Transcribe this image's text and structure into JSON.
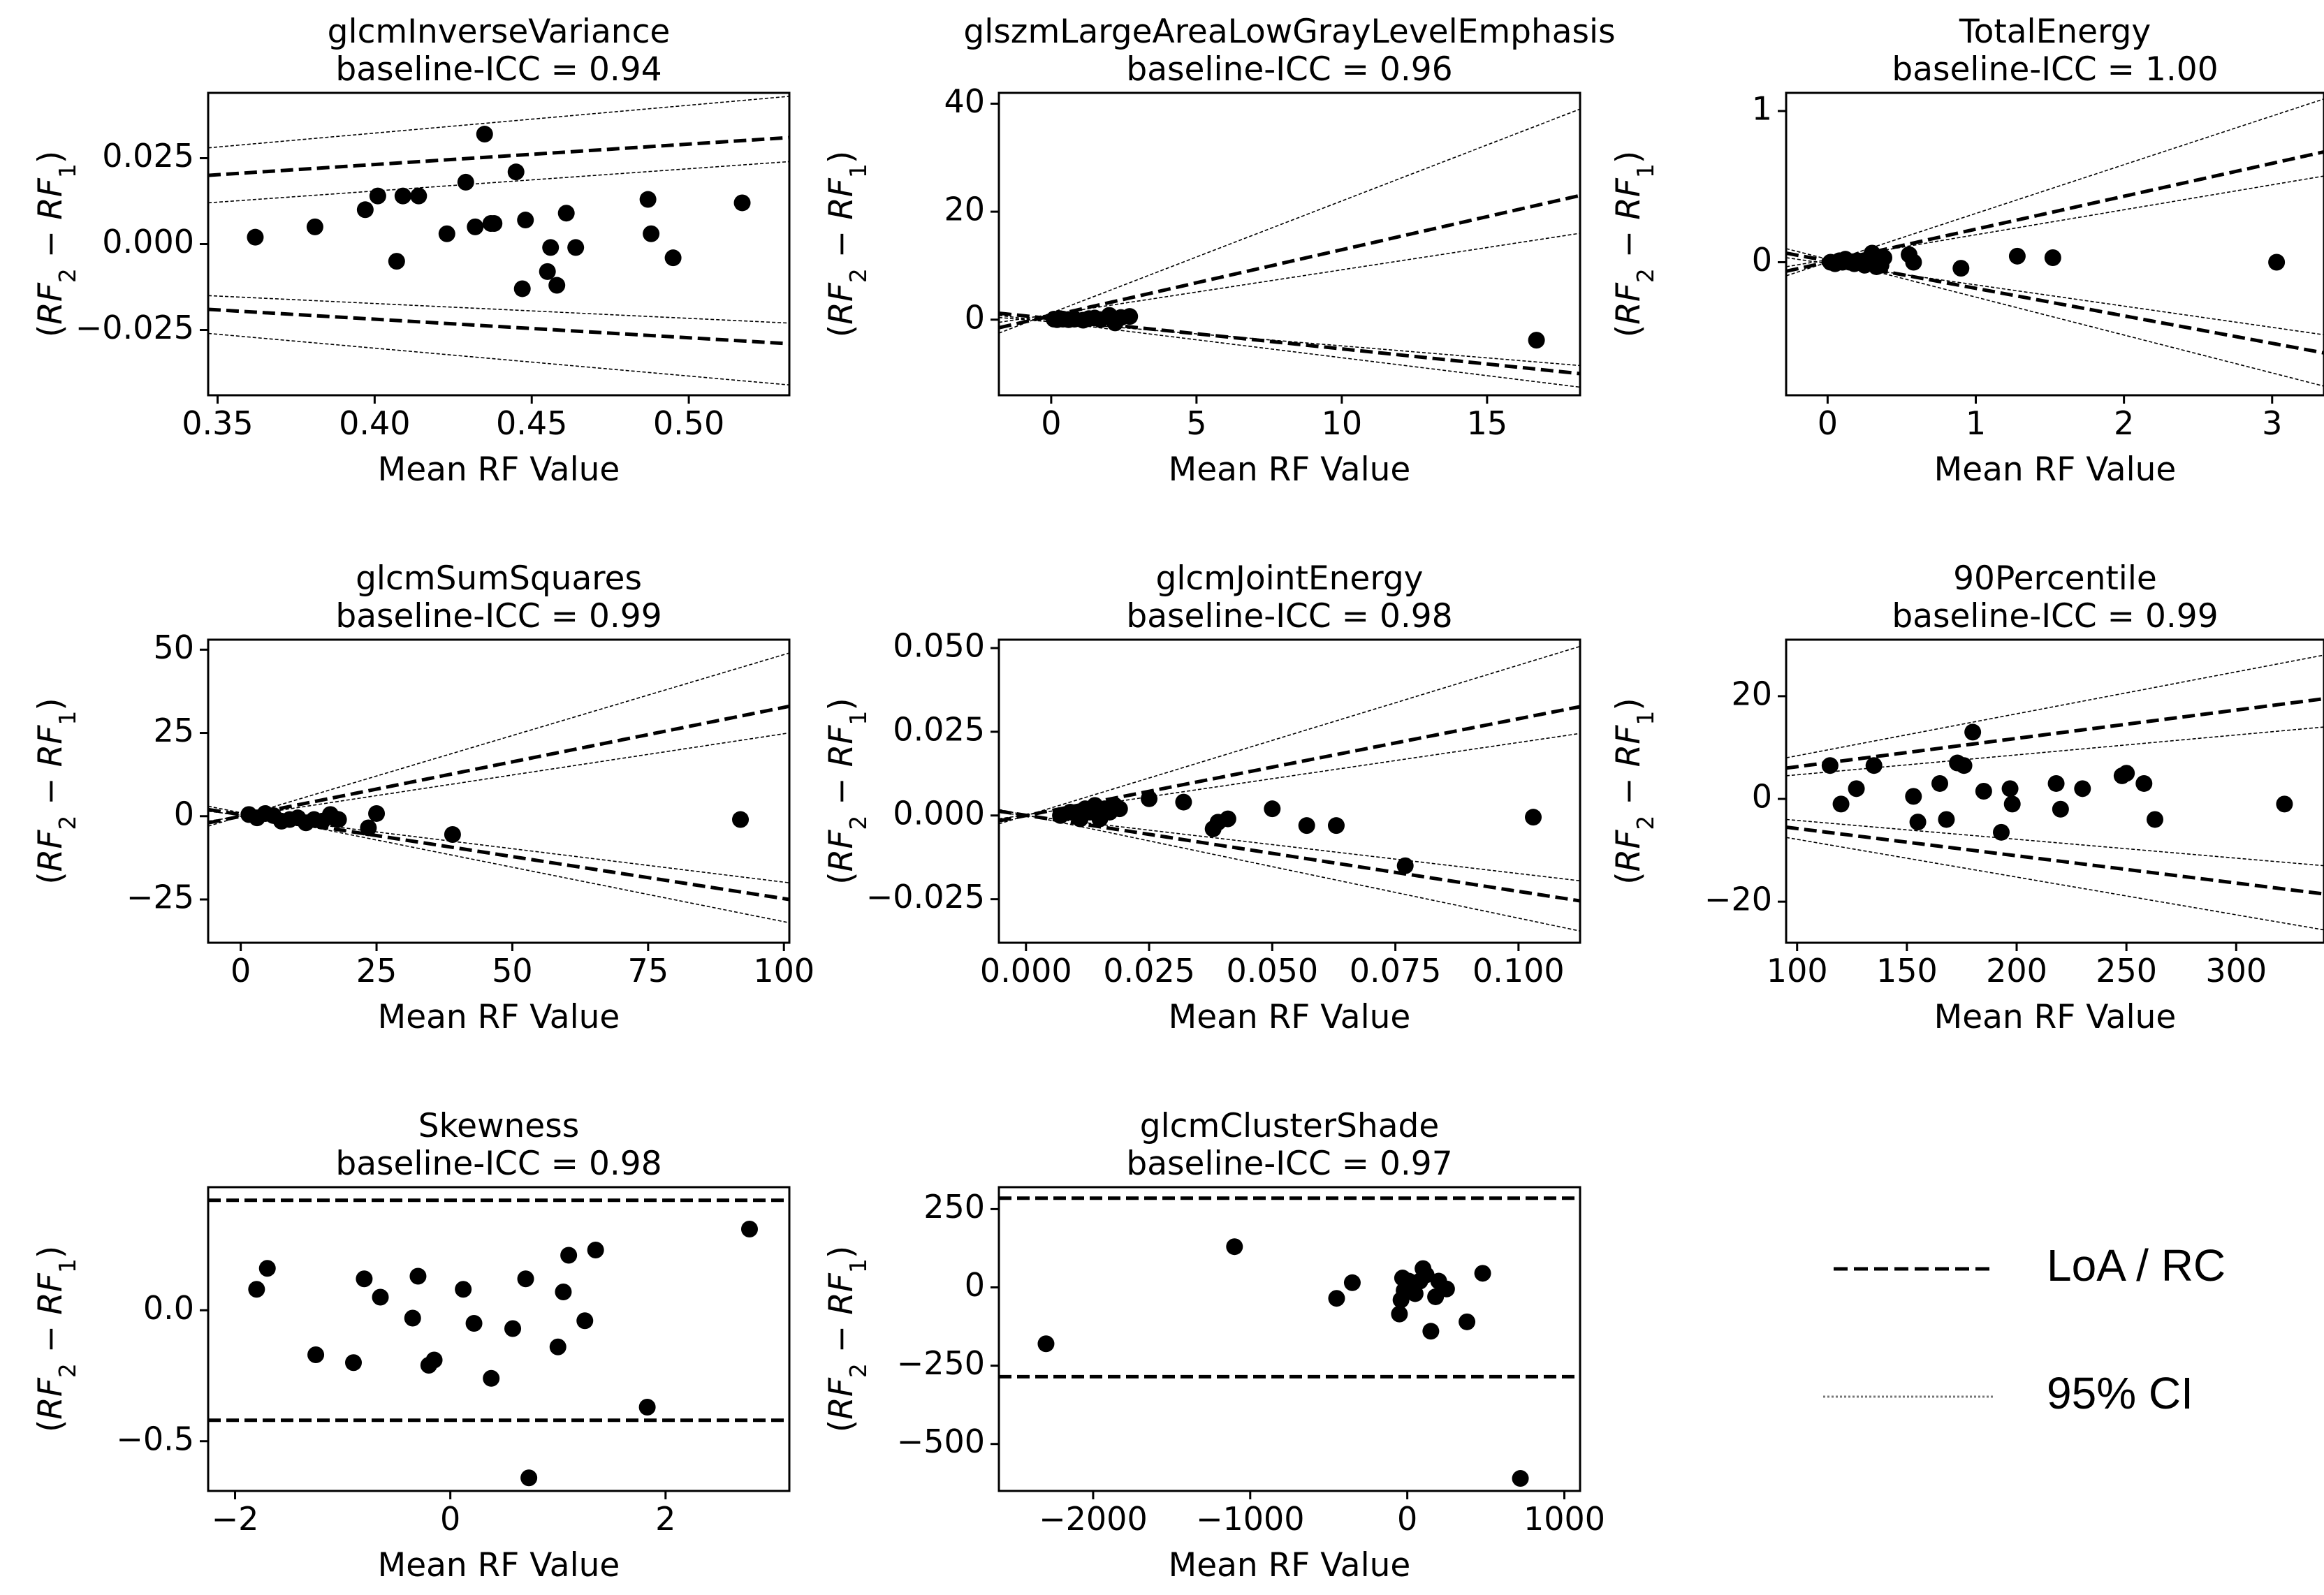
{
  "figure": {
    "xlabel": "Mean RF Value",
    "ylabel_parts": {
      "open": "(",
      "rf": "RF",
      "sub2": "2",
      "minus": " − ",
      "sub1": "1",
      "close": ")"
    },
    "legend": {
      "loa_label": "LoA / RC",
      "ci_label": "95% CI"
    }
  },
  "chart_data": [
    {
      "type": "scatter",
      "title": "glcmInverseVariance",
      "subtitle": "baseline-ICC = 0.94",
      "xlabel": "Mean RF Value",
      "ylabel": "(RF2 − RF1)",
      "xlim": [
        0.347,
        0.532
      ],
      "ylim": [
        -0.044,
        0.044
      ],
      "xticks": [
        0.35,
        0.4,
        0.45,
        0.5
      ],
      "xtick_labels": [
        "0.35",
        "0.40",
        "0.45",
        "0.50"
      ],
      "yticks": [
        -0.025,
        0.0,
        0.025
      ],
      "ytick_labels": [
        "−0.025",
        "0.000",
        "0.025"
      ],
      "loa_lines": [
        [
          [
            0.347,
            0.02
          ],
          [
            0.532,
            0.031
          ]
        ],
        [
          [
            0.347,
            -0.019
          ],
          [
            0.532,
            -0.029
          ]
        ]
      ],
      "ci_lines": [
        [
          [
            0.347,
            0.028
          ],
          [
            0.532,
            0.043
          ]
        ],
        [
          [
            0.347,
            0.012
          ],
          [
            0.532,
            0.024
          ]
        ],
        [
          [
            0.347,
            -0.015
          ],
          [
            0.532,
            -0.023
          ]
        ],
        [
          [
            0.347,
            -0.026
          ],
          [
            0.532,
            -0.041
          ]
        ]
      ],
      "points": {
        "x": [
          0.362,
          0.381,
          0.397,
          0.401,
          0.407,
          0.409,
          0.414,
          0.423,
          0.429,
          0.432,
          0.435,
          0.437,
          0.438,
          0.445,
          0.447,
          0.448,
          0.455,
          0.456,
          0.458,
          0.461,
          0.464,
          0.487,
          0.488,
          0.495,
          0.517
        ],
        "y": [
          0.002,
          0.005,
          0.01,
          0.014,
          -0.005,
          0.014,
          0.014,
          0.003,
          0.018,
          0.005,
          0.032,
          0.006,
          0.006,
          0.021,
          -0.013,
          0.007,
          -0.008,
          -0.001,
          -0.012,
          0.009,
          -0.001,
          0.013,
          0.003,
          -0.004,
          0.012
        ]
      }
    },
    {
      "type": "scatter",
      "title": "glszmLargeAreaLowGrayLevelEmphasis",
      "subtitle": "baseline-ICC = 0.96",
      "xlabel": "Mean RF Value",
      "ylabel": "(RF2 − RF1)",
      "xlim": [
        -1.8,
        18.2
      ],
      "ylim": [
        -14,
        42
      ],
      "xticks": [
        0,
        5,
        10,
        15
      ],
      "xtick_labels": [
        "0",
        "5",
        "10",
        "15"
      ],
      "yticks": [
        0,
        20,
        40
      ],
      "ytick_labels": [
        "0",
        "20",
        "40"
      ],
      "loa_lines": [
        [
          [
            -1.8,
            -1.5
          ],
          [
            18.2,
            23
          ]
        ],
        [
          [
            -1.8,
            1.2
          ],
          [
            18.2,
            -10
          ]
        ]
      ],
      "ci_lines": [
        [
          [
            -1.8,
            -2.5
          ],
          [
            18.2,
            39
          ]
        ],
        [
          [
            -1.8,
            -0.5
          ],
          [
            18.2,
            16
          ]
        ],
        [
          [
            -1.8,
            0.4
          ],
          [
            18.2,
            -8.5
          ]
        ],
        [
          [
            -1.8,
            0.8
          ],
          [
            18.2,
            -12.5
          ]
        ]
      ],
      "points": {
        "x": [
          0.1,
          0.2,
          0.3,
          0.4,
          0.6,
          0.8,
          1.1,
          1.3,
          1.5,
          1.7,
          2.0,
          2.2,
          2.4,
          2.7,
          16.7
        ],
        "y": [
          0.1,
          0.0,
          0.2,
          0.1,
          0.0,
          0.1,
          -0.1,
          0.2,
          0.3,
          0.0,
          0.8,
          -0.6,
          0.4,
          0.6,
          -3.8
        ]
      }
    },
    {
      "type": "scatter",
      "title": "TotalEnergy",
      "subtitle": "baseline-ICC = 1.00",
      "xlabel": "Mean RF Value",
      "ylabel": "(RF2 − RF1)",
      "xlim": [
        -0.28,
        3.35
      ],
      "ylim": [
        -0.88,
        1.12
      ],
      "xticks": [
        0,
        1,
        2,
        3
      ],
      "xtick_labels": [
        "0",
        "1",
        "2",
        "3"
      ],
      "yticks": [
        0,
        1
      ],
      "ytick_labels": [
        "0",
        "1"
      ],
      "loa_lines": [
        [
          [
            -0.28,
            -0.06
          ],
          [
            3.35,
            0.73
          ]
        ],
        [
          [
            -0.28,
            0.06
          ],
          [
            3.35,
            -0.6
          ]
        ]
      ],
      "ci_lines": [
        [
          [
            -0.28,
            -0.09
          ],
          [
            3.35,
            1.08
          ]
        ],
        [
          [
            -0.28,
            -0.03
          ],
          [
            3.35,
            0.57
          ]
        ],
        [
          [
            -0.28,
            0.03
          ],
          [
            3.35,
            -0.48
          ]
        ],
        [
          [
            -0.28,
            0.09
          ],
          [
            3.35,
            -0.82
          ]
        ]
      ],
      "points": {
        "x": [
          0.02,
          0.05,
          0.08,
          0.1,
          0.12,
          0.15,
          0.18,
          0.2,
          0.22,
          0.25,
          0.28,
          0.3,
          0.33,
          0.35,
          0.36,
          0.38,
          0.55,
          0.58,
          0.9,
          1.28,
          1.52,
          3.03
        ],
        "y": [
          0.0,
          -0.01,
          0.01,
          0.0,
          0.02,
          0.0,
          -0.01,
          0.01,
          0.0,
          -0.02,
          0.0,
          0.06,
          -0.03,
          0.02,
          -0.02,
          0.03,
          0.05,
          0.0,
          -0.04,
          0.04,
          0.03,
          0.0
        ]
      }
    },
    {
      "type": "scatter",
      "title": "glcmSumSquares",
      "subtitle": "baseline-ICC = 0.99",
      "xlabel": "Mean RF Value",
      "ylabel": "(RF2 − RF1)",
      "xlim": [
        -6,
        101
      ],
      "ylim": [
        -38,
        53
      ],
      "xticks": [
        0,
        25,
        50,
        75,
        100
      ],
      "xtick_labels": [
        "0",
        "25",
        "50",
        "75",
        "100"
      ],
      "yticks": [
        -25,
        0,
        25,
        50
      ],
      "ytick_labels": [
        "−25",
        "0",
        "25",
        "50"
      ],
      "loa_lines": [
        [
          [
            -6,
            -2
          ],
          [
            101,
            33
          ]
        ],
        [
          [
            -6,
            2
          ],
          [
            101,
            -25
          ]
        ]
      ],
      "ci_lines": [
        [
          [
            -6,
            -3
          ],
          [
            101,
            49
          ]
        ],
        [
          [
            -6,
            -1.5
          ],
          [
            101,
            25
          ]
        ],
        [
          [
            -6,
            1.5
          ],
          [
            101,
            -20
          ]
        ],
        [
          [
            -6,
            3
          ],
          [
            101,
            -32
          ]
        ]
      ],
      "points": {
        "x": [
          1.5,
          3,
          4.5,
          6,
          7.5,
          9,
          10.5,
          12,
          13.5,
          15,
          16.5,
          17.5,
          18,
          23.5,
          25,
          39,
          92
        ],
        "y": [
          0.5,
          -0.5,
          0.8,
          0.2,
          -1.5,
          -1.0,
          -0.5,
          -2.0,
          -1.0,
          -1.5,
          0.5,
          -0.8,
          -1.0,
          -3.5,
          0.8,
          -5.5,
          -1.0
        ]
      }
    },
    {
      "type": "scatter",
      "title": "glcmJointEnergy",
      "subtitle": "baseline-ICC = 0.98",
      "xlabel": "Mean RF Value",
      "ylabel": "(RF2 − RF1)",
      "xlim": [
        -0.0055,
        0.1125
      ],
      "ylim": [
        -0.038,
        0.0525
      ],
      "xticks": [
        0.0,
        0.025,
        0.05,
        0.075,
        0.1
      ],
      "xtick_labels": [
        "0.000",
        "0.025",
        "0.050",
        "0.075",
        "0.100"
      ],
      "yticks": [
        -0.025,
        0.0,
        0.025,
        0.05
      ],
      "ytick_labels": [
        "−0.025",
        "0.000",
        "0.025",
        "0.050"
      ],
      "loa_lines": [
        [
          [
            -0.0055,
            -0.0016
          ],
          [
            0.1125,
            0.0325
          ]
        ],
        [
          [
            -0.0055,
            0.0013
          ],
          [
            0.1125,
            -0.0255
          ]
        ]
      ],
      "ci_lines": [
        [
          [
            -0.0055,
            -0.0025
          ],
          [
            0.1125,
            0.0505
          ]
        ],
        [
          [
            -0.0055,
            -0.001
          ],
          [
            0.1125,
            0.0245
          ]
        ],
        [
          [
            -0.0055,
            0.0009
          ],
          [
            0.1125,
            -0.0195
          ]
        ],
        [
          [
            -0.0055,
            0.0018
          ],
          [
            0.1125,
            -0.0345
          ]
        ]
      ],
      "points": {
        "x": [
          0.007,
          0.009,
          0.011,
          0.012,
          0.013,
          0.014,
          0.015,
          0.016,
          0.017,
          0.018,
          0.019,
          0.025,
          0.032,
          0.038,
          0.039,
          0.041,
          0.05,
          0.057,
          0.063,
          0.077,
          0.103
        ],
        "y": [
          0.0,
          0.001,
          -0.001,
          0.002,
          0.001,
          0.003,
          -0.001,
          0.002,
          0.001,
          0.003,
          0.002,
          0.005,
          0.004,
          -0.004,
          -0.002,
          -0.001,
          0.002,
          -0.003,
          -0.003,
          -0.015,
          -0.0005
        ]
      }
    },
    {
      "type": "scatter",
      "title": "90Percentile",
      "subtitle": "baseline-ICC = 0.99",
      "xlabel": "Mean RF Value",
      "ylabel": "(RF2 − RF1)",
      "xlim": [
        95,
        340
      ],
      "ylim": [
        -28,
        31
      ],
      "xticks": [
        100,
        150,
        200,
        250,
        300
      ],
      "xtick_labels": [
        "100",
        "150",
        "200",
        "250",
        "300"
      ],
      "yticks": [
        -20,
        0,
        20
      ],
      "ytick_labels": [
        "−20",
        "0",
        "20"
      ],
      "loa_lines": [
        [
          [
            95,
            6
          ],
          [
            340,
            19.5
          ]
        ],
        [
          [
            95,
            -5.5
          ],
          [
            340,
            -18.5
          ]
        ]
      ],
      "ci_lines": [
        [
          [
            95,
            8
          ],
          [
            340,
            28
          ]
        ],
        [
          [
            95,
            4.5
          ],
          [
            340,
            14
          ]
        ],
        [
          [
            95,
            -4
          ],
          [
            340,
            -13
          ]
        ],
        [
          [
            95,
            -7.5
          ],
          [
            340,
            -25.5
          ]
        ]
      ],
      "points": {
        "x": [
          115,
          120,
          127,
          135,
          153,
          155,
          165,
          168,
          173,
          176,
          180,
          185,
          193,
          197,
          198,
          218,
          220,
          230,
          248,
          250,
          258,
          263,
          322
        ],
        "y": [
          6.5,
          -1,
          2,
          6.5,
          0.5,
          -4.5,
          3,
          -4,
          7,
          6.5,
          13,
          1.5,
          -6.5,
          2,
          -1,
          3,
          -2,
          2,
          4.5,
          5,
          3,
          -4,
          -1
        ]
      }
    },
    {
      "type": "scatter",
      "title": "Skewness",
      "subtitle": "baseline-ICC = 0.98",
      "xlabel": "Mean RF Value",
      "ylabel": "(RF2 − RF1)",
      "xlim": [
        -2.25,
        3.15
      ],
      "ylim": [
        -0.69,
        0.47
      ],
      "xticks": [
        -2,
        0,
        2
      ],
      "xtick_labels": [
        "−2",
        "0",
        "2"
      ],
      "yticks": [
        -0.5,
        0.0
      ],
      "ytick_labels": [
        "−0.5",
        "0.0"
      ],
      "loa_lines": [
        [
          [
            -2.25,
            0.42
          ],
          [
            3.15,
            0.42
          ]
        ],
        [
          [
            -2.25,
            -0.42
          ],
          [
            3.15,
            -0.42
          ]
        ]
      ],
      "ci_lines": [],
      "points": {
        "x": [
          -1.8,
          -1.7,
          -1.25,
          -0.9,
          -0.8,
          -0.65,
          -0.35,
          -0.3,
          -0.2,
          -0.15,
          0.12,
          0.22,
          0.38,
          0.58,
          0.7,
          0.73,
          1.0,
          1.05,
          1.1,
          1.25,
          1.35,
          1.83,
          2.78
        ],
        "y": [
          0.08,
          0.16,
          -0.17,
          -0.2,
          0.12,
          0.05,
          -0.03,
          0.13,
          -0.21,
          -0.19,
          0.08,
          -0.05,
          -0.26,
          -0.07,
          0.12,
          -0.64,
          -0.14,
          0.07,
          0.21,
          -0.04,
          0.23,
          -0.37,
          0.31
        ]
      }
    },
    {
      "type": "scatter",
      "title": "glcmClusterShade",
      "subtitle": "baseline-ICC = 0.97",
      "xlabel": "Mean RF Value",
      "ylabel": "(RF2 − RF1)",
      "xlim": [
        -2600,
        1100
      ],
      "ylim": [
        -650,
        320
      ],
      "xticks": [
        -2000,
        -1000,
        0,
        1000
      ],
      "xtick_labels": [
        "−2000",
        "−1000",
        "0",
        "1000"
      ],
      "yticks": [
        -500,
        -250,
        0,
        250
      ],
      "ytick_labels": [
        "−500",
        "−250",
        "0",
        "250"
      ],
      "loa_lines": [
        [
          [
            -2600,
            285
          ],
          [
            1100,
            285
          ]
        ],
        [
          [
            -2600,
            -285
          ],
          [
            1100,
            -285
          ]
        ]
      ],
      "ci_lines": [],
      "points": {
        "x": [
          -2300,
          -1100,
          -450,
          -350,
          -50,
          -40,
          -30,
          -20,
          10,
          50,
          80,
          100,
          120,
          150,
          180,
          200,
          250,
          380,
          480,
          720
        ],
        "y": [
          -180,
          130,
          -35,
          15,
          -85,
          -40,
          30,
          -10,
          20,
          -20,
          20,
          60,
          40,
          -140,
          -30,
          20,
          -5,
          -110,
          45,
          -610
        ]
      }
    }
  ]
}
